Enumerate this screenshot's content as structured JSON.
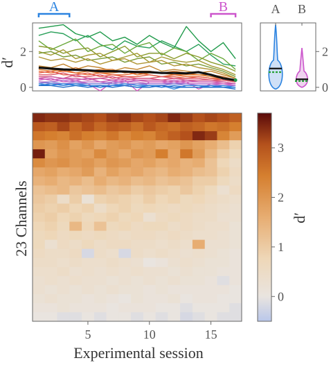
{
  "chart_data": [
    {
      "type": "line",
      "ylabel": "d′",
      "x": [
        1,
        2,
        3,
        4,
        5,
        6,
        7,
        8,
        9,
        10,
        11,
        12,
        13,
        14,
        15,
        16,
        17
      ],
      "xlim": [
        0.5,
        17.5
      ],
      "ylim": [
        -0.2,
        3.6
      ],
      "yticks": [
        0,
        2
      ],
      "range_markers": [
        {
          "label": "A",
          "x": [
            1,
            3.5
          ],
          "color": "#2b83e0"
        },
        {
          "label": "B",
          "x": [
            15,
            17
          ],
          "color": "#cc55cc"
        }
      ],
      "series": [
        {
          "color": "#1f9a4a",
          "values": [
            3.3,
            3.4,
            3.5,
            3.0,
            2.8,
            3.1,
            2.6,
            2.8,
            2.4,
            2.9,
            2.5,
            2.2,
            3.4,
            2.6,
            2.0,
            2.5,
            1.6
          ]
        },
        {
          "color": "#2aa05a",
          "values": [
            2.9,
            3.1,
            3.0,
            2.6,
            2.9,
            2.4,
            2.1,
            2.6,
            2.3,
            2.2,
            2.6,
            2.3,
            2.0,
            2.4,
            1.8,
            1.3,
            1.2
          ]
        },
        {
          "color": "#6aa83a",
          "values": [
            2.6,
            2.1,
            2.4,
            2.7,
            2.0,
            2.3,
            2.4,
            1.9,
            2.3,
            2.5,
            1.8,
            2.2,
            2.0,
            1.5,
            1.9,
            1.6,
            1.0
          ]
        },
        {
          "color": "#8a9a2c",
          "values": [
            2.3,
            2.2,
            1.9,
            2.1,
            2.2,
            1.7,
            2.0,
            2.3,
            1.7,
            1.9,
            1.9,
            1.6,
            1.9,
            1.7,
            1.4,
            1.2,
            0.9
          ]
        },
        {
          "color": "#a39a33",
          "values": [
            2.0,
            1.8,
            2.1,
            1.6,
            1.8,
            1.9,
            1.5,
            1.7,
            1.9,
            1.4,
            1.7,
            1.5,
            1.4,
            1.5,
            1.2,
            1.0,
            0.7
          ]
        },
        {
          "color": "#7a9a36",
          "values": [
            1.9,
            2.0,
            1.7,
            1.8,
            1.5,
            1.6,
            1.7,
            1.4,
            1.6,
            1.7,
            1.3,
            1.4,
            1.2,
            1.3,
            1.1,
            0.9,
            0.6
          ]
        },
        {
          "color": "#b09535",
          "values": [
            1.7,
            1.5,
            1.6,
            1.4,
            1.6,
            1.3,
            1.5,
            1.6,
            1.3,
            1.4,
            1.5,
            1.2,
            1.3,
            1.1,
            1.0,
            0.8,
            0.5
          ]
        },
        {
          "color": "#c2842e",
          "values": [
            1.2,
            1.1,
            1.3,
            1.0,
            1.2,
            1.1,
            0.9,
            1.1,
            1.0,
            1.2,
            0.9,
            1.0,
            0.9,
            0.8,
            0.9,
            0.7,
            0.5
          ]
        },
        {
          "color": "#d0742a",
          "values": [
            1.1,
            1.0,
            0.9,
            1.1,
            0.9,
            1.0,
            1.0,
            0.8,
            0.9,
            0.9,
            0.8,
            0.9,
            0.8,
            0.7,
            0.7,
            0.6,
            0.4
          ]
        },
        {
          "color": "#e07a2a",
          "values": [
            1.0,
            0.9,
            1.0,
            0.8,
            0.9,
            0.8,
            0.8,
            0.9,
            0.7,
            0.8,
            0.8,
            0.7,
            0.7,
            0.7,
            0.6,
            0.5,
            0.4
          ]
        },
        {
          "color": "#e86a33",
          "values": [
            0.9,
            0.8,
            0.9,
            0.8,
            0.7,
            0.8,
            0.7,
            0.7,
            0.8,
            0.7,
            0.6,
            0.7,
            0.6,
            0.6,
            0.5,
            0.5,
            0.3
          ]
        },
        {
          "color": "#e2604a",
          "values": [
            0.8,
            0.9,
            0.7,
            0.7,
            0.8,
            0.6,
            0.7,
            0.6,
            0.6,
            0.7,
            0.6,
            0.6,
            0.5,
            0.6,
            0.5,
            0.4,
            0.3
          ]
        },
        {
          "color": "#dd5a6a",
          "values": [
            0.7,
            0.7,
            0.8,
            0.6,
            0.6,
            0.7,
            0.5,
            0.6,
            0.5,
            0.5,
            0.6,
            0.5,
            0.5,
            0.5,
            0.4,
            0.4,
            0.3
          ]
        },
        {
          "color": "#d85a85",
          "values": [
            0.6,
            0.6,
            0.5,
            0.7,
            0.5,
            0.5,
            0.6,
            0.4,
            0.5,
            0.5,
            0.4,
            0.5,
            0.4,
            0.4,
            0.4,
            0.3,
            0.2
          ]
        },
        {
          "color": "#cc5aa0",
          "values": [
            0.5,
            0.6,
            0.5,
            0.5,
            0.4,
            0.5,
            0.4,
            0.5,
            0.4,
            0.4,
            0.4,
            0.3,
            0.4,
            0.3,
            0.3,
            0.3,
            0.2
          ]
        },
        {
          "color": "#c75ab5",
          "values": [
            0.5,
            0.4,
            0.5,
            0.4,
            0.5,
            0.3,
            0.4,
            0.3,
            0.4,
            0.3,
            0.3,
            0.4,
            0.3,
            0.3,
            0.3,
            0.2,
            0.2
          ]
        },
        {
          "color": "#d060c0",
          "values": [
            0.4,
            0.5,
            0.3,
            0.4,
            0.2,
            -0.2,
            0.3,
            0.4,
            -0.2,
            0.3,
            0.3,
            0.2,
            0.3,
            -0.1,
            0.2,
            0.2,
            0.1
          ]
        },
        {
          "color": "#b86ac8",
          "values": [
            0.3,
            0.3,
            0.4,
            0.3,
            0.3,
            0.3,
            0.2,
            0.3,
            0.3,
            0.2,
            0.2,
            0.3,
            0.2,
            0.2,
            0.2,
            0.1,
            0.1
          ]
        },
        {
          "color": "#a070d0",
          "values": [
            0.3,
            0.2,
            0.2,
            0.3,
            0.2,
            0.2,
            0.3,
            0.2,
            0.2,
            0.2,
            0.2,
            0.2,
            0.2,
            0.1,
            0.1,
            0.1,
            0.1
          ]
        },
        {
          "color": "#7a82d8",
          "values": [
            0.2,
            0.3,
            0.2,
            0.2,
            0.2,
            0.2,
            0.2,
            0.1,
            0.2,
            0.1,
            0.1,
            0.2,
            0.1,
            0.1,
            0.1,
            0.1,
            0.0
          ]
        },
        {
          "color": "#3a8ee0",
          "values": [
            0.2,
            0.1,
            0.2,
            0.1,
            0.1,
            0.1,
            0.1,
            0.2,
            0.1,
            0.1,
            0.1,
            -0.1,
            0.1,
            0.1,
            0.0,
            0.1,
            0.0
          ]
        },
        {
          "color": "#2a7ad8",
          "values": [
            0.1,
            0.2,
            0.1,
            0.2,
            0.1,
            0.0,
            0.1,
            0.1,
            0.0,
            0.1,
            0.0,
            0.1,
            0.0,
            0.0,
            0.1,
            0.0,
            0.0
          ]
        },
        {
          "color": "#1e6ac8",
          "values": [
            0.1,
            0.1,
            0.0,
            0.1,
            0.0,
            0.1,
            0.0,
            0.1,
            0.0,
            0.0,
            0.1,
            0.0,
            0.0,
            0.0,
            0.0,
            0.0,
            -0.1
          ]
        },
        {
          "color": "#111111",
          "width": 3.2,
          "values": [
            1.1,
            1.05,
            1.0,
            0.98,
            0.95,
            0.9,
            0.9,
            0.88,
            0.85,
            0.85,
            0.8,
            0.8,
            0.78,
            0.85,
            0.7,
            0.5,
            0.4
          ]
        }
      ]
    },
    {
      "type": "violin",
      "categories": [
        "A",
        "B"
      ],
      "ylim": [
        -0.2,
        3.6
      ],
      "yticks": [
        0,
        2
      ],
      "violins": [
        {
          "label": "A",
          "color": "#2b83e0",
          "fill": "#cfe0f7",
          "max": 3.5,
          "min": -0.1,
          "mean": 1.05,
          "median": 0.85
        },
        {
          "label": "B",
          "color": "#cc55cc",
          "fill": "#efd3ef",
          "max": 2.2,
          "min": 0.0,
          "mean": 0.45,
          "median": 0.35
        }
      ]
    },
    {
      "type": "heatmap",
      "xlabel": "Experimental session",
      "ylabel": "23 Channels",
      "xticks": [
        5,
        10,
        15
      ],
      "n_cols": 17,
      "n_rows": 23,
      "colorbar": {
        "label": "d′",
        "range": [
          -0.5,
          3.7
        ],
        "ticks": [
          0,
          1,
          2,
          3
        ]
      },
      "rows": [
        [
          3.4,
          3.3,
          3.3,
          3.2,
          3.1,
          3.0,
          3.2,
          3.3,
          3.1,
          3.0,
          3.1,
          3.4,
          3.2,
          3.0,
          3.1,
          3.0,
          2.8
        ],
        [
          2.9,
          2.8,
          3.1,
          2.7,
          3.0,
          2.7,
          2.9,
          2.8,
          2.6,
          2.9,
          2.7,
          2.6,
          2.8,
          2.7,
          2.5,
          2.6,
          2.4
        ],
        [
          2.5,
          2.4,
          2.3,
          2.6,
          2.4,
          2.3,
          2.5,
          2.2,
          2.4,
          2.3,
          2.6,
          2.8,
          3.0,
          3.4,
          3.2,
          2.3,
          1.9
        ],
        [
          2.0,
          1.9,
          2.1,
          1.8,
          2.0,
          1.7,
          1.9,
          2.0,
          1.8,
          1.9,
          1.7,
          1.8,
          2.0,
          1.8,
          1.6,
          1.3,
          0.9
        ],
        [
          3.5,
          1.8,
          2.0,
          1.9,
          1.8,
          2.2,
          1.9,
          1.7,
          2.0,
          1.9,
          2.4,
          1.7,
          2.5,
          1.9,
          1.4,
          1.0,
          0.7
        ],
        [
          2.2,
          2.0,
          2.1,
          1.9,
          2.0,
          1.8,
          2.0,
          1.9,
          1.7,
          1.8,
          1.6,
          1.7,
          1.5,
          1.6,
          1.2,
          0.8,
          0.5
        ],
        [
          1.7,
          1.8,
          1.6,
          1.7,
          1.9,
          1.5,
          1.8,
          1.6,
          1.7,
          1.5,
          1.4,
          1.6,
          1.5,
          1.3,
          1.2,
          0.9,
          0.6
        ],
        [
          1.5,
          1.6,
          1.4,
          1.5,
          1.3,
          1.6,
          1.4,
          1.5,
          1.3,
          1.4,
          1.2,
          1.3,
          1.2,
          1.0,
          1.0,
          0.7,
          0.5
        ],
        [
          1.2,
          1.3,
          1.4,
          1.1,
          1.2,
          1.3,
          1.1,
          1.2,
          1.0,
          1.1,
          1.0,
          0.9,
          1.1,
          0.9,
          0.7,
          0.3,
          0.6
        ],
        [
          1.1,
          1.0,
          0.5,
          1.0,
          0.2,
          0.9,
          1.0,
          0.9,
          0.8,
          1.0,
          0.8,
          0.9,
          0.7,
          0.8,
          0.6,
          0.5,
          0.4
        ],
        [
          1.0,
          0.9,
          1.0,
          0.8,
          0.9,
          0.5,
          0.8,
          0.9,
          0.7,
          0.8,
          0.7,
          0.6,
          0.7,
          0.6,
          0.5,
          0.4,
          0.3
        ],
        [
          0.9,
          1.0,
          0.8,
          0.9,
          0.7,
          0.8,
          0.9,
          0.7,
          0.8,
          0.3,
          0.6,
          0.7,
          0.6,
          0.5,
          0.5,
          0.3,
          0.3
        ],
        [
          0.8,
          0.9,
          0.7,
          1.4,
          0.8,
          1.2,
          0.7,
          0.8,
          0.6,
          0.7,
          0.7,
          0.5,
          0.6,
          0.5,
          0.4,
          0.4,
          0.2
        ],
        [
          0.7,
          0.8,
          0.6,
          0.7,
          0.6,
          0.7,
          0.6,
          0.5,
          0.6,
          0.6,
          0.5,
          0.6,
          0.5,
          0.4,
          0.4,
          0.3,
          0.2
        ],
        [
          0.7,
          0.3,
          0.6,
          0.5,
          0.7,
          0.5,
          0.6,
          0.6,
          0.5,
          0.5,
          0.4,
          0.5,
          0.4,
          1.6,
          0.3,
          0.3,
          0.2
        ],
        [
          0.6,
          0.5,
          0.5,
          0.6,
          -0.2,
          0.5,
          0.4,
          -0.2,
          0.5,
          0.4,
          0.5,
          0.4,
          0.3,
          0.4,
          0.3,
          0.2,
          0.1
        ],
        [
          0.5,
          0.5,
          0.4,
          0.5,
          0.4,
          0.4,
          0.5,
          0.4,
          0.3,
          0.0,
          0.1,
          0.3,
          0.4,
          0.3,
          0.2,
          0.2,
          0.1
        ],
        [
          0.4,
          0.4,
          0.5,
          0.3,
          0.4,
          0.3,
          0.4,
          0.3,
          0.4,
          0.3,
          0.3,
          0.2,
          0.3,
          0.2,
          0.2,
          0.1,
          0.1
        ],
        [
          0.3,
          0.4,
          0.3,
          0.4,
          0.3,
          0.3,
          0.2,
          0.3,
          0.2,
          0.3,
          0.2,
          0.3,
          0.2,
          0.2,
          0.1,
          -0.1,
          0.1
        ],
        [
          0.3,
          0.2,
          0.3,
          0.2,
          0.3,
          0.2,
          0.3,
          0.2,
          0.2,
          0.1,
          0.2,
          0.1,
          0.1,
          0.1,
          0.1,
          0.1,
          0.0
        ],
        [
          0.2,
          0.3,
          0.2,
          0.2,
          0.1,
          0.2,
          0.1,
          0.0,
          0.2,
          0.1,
          0.1,
          0.2,
          0.0,
          0.1,
          0.1,
          0.0,
          0.0
        ],
        [
          0.1,
          0.1,
          0.2,
          0.1,
          0.1,
          0.1,
          0.0,
          0.1,
          0.1,
          0.1,
          0.0,
          0.0,
          -0.1,
          0.0,
          0.0,
          0.0,
          -0.1
        ],
        [
          0.0,
          0.0,
          -0.1,
          -0.1,
          0.0,
          -0.1,
          0.0,
          0.0,
          -0.1,
          0.0,
          -0.1,
          0.0,
          -0.2,
          -0.1,
          0.0,
          -0.1,
          -0.1
        ]
      ]
    }
  ]
}
